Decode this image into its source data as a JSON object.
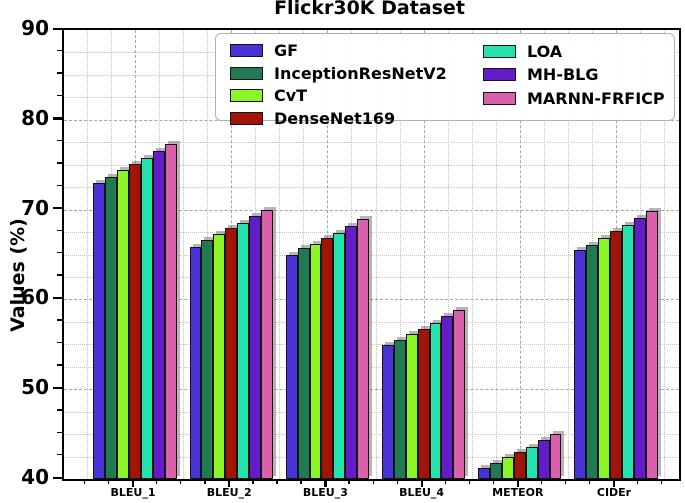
{
  "figure": {
    "title": "Flickr30K Dataset",
    "ylabel": "Values (%)"
  },
  "chart_data": {
    "type": "bar",
    "title": "Flickr30K Dataset",
    "xlabel": "",
    "ylabel": "Values (%)",
    "ylim": [
      40,
      90
    ],
    "y_major_ticks": [
      40,
      50,
      60,
      70,
      80,
      90
    ],
    "y_minor_step": 2.5,
    "grid": true,
    "legend_position": "upper center inside plot, two columns",
    "categories": [
      "BLEU_1",
      "BLEU_2",
      "BLEU_3",
      "BLEU_4",
      "METEOR",
      "CIDEr"
    ],
    "series": [
      {
        "name": "GF",
        "color": "#4733d6",
        "values": [
          73.0,
          65.8,
          65.0,
          54.9,
          41.2,
          65.5
        ]
      },
      {
        "name": "InceptionResNetV2",
        "color": "#227a52",
        "values": [
          73.6,
          66.6,
          65.7,
          55.5,
          41.8,
          66.1
        ]
      },
      {
        "name": "CvT",
        "color": "#8df527",
        "values": [
          74.4,
          67.3,
          66.2,
          56.1,
          42.5,
          66.8
        ]
      },
      {
        "name": "DenseNet169",
        "color": "#a11509",
        "values": [
          75.1,
          68.0,
          66.8,
          56.7,
          43.0,
          67.6
        ]
      },
      {
        "name": "LOA",
        "color": "#26e3ae",
        "values": [
          75.8,
          68.5,
          67.4,
          57.4,
          43.6,
          68.3
        ]
      },
      {
        "name": "MH-BLG",
        "color": "#641bc8",
        "values": [
          76.5,
          69.3,
          68.2,
          58.1,
          44.3,
          69.1
        ]
      },
      {
        "name": "MARNN-FRFICP",
        "color": "#d960aa",
        "values": [
          77.3,
          70.0,
          69.0,
          58.8,
          45.0,
          69.8
        ]
      }
    ],
    "legend_columns": [
      [
        "GF",
        "InceptionResNetV2",
        "CvT",
        "DenseNet169"
      ],
      [
        "LOA",
        "MH-BLG",
        "MARNN-FRFICP"
      ]
    ],
    "colors": {
      "grid_major": "#a6a6a6",
      "grid_minor": "#c3c3c3",
      "bar_edge": "#141414",
      "spine": "#000000"
    }
  }
}
